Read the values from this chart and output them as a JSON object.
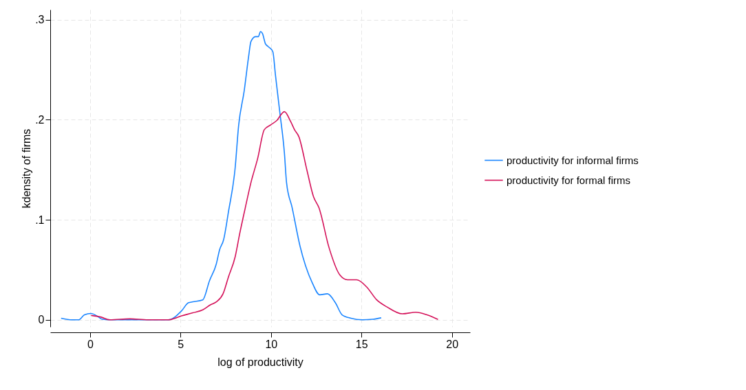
{
  "chart_data": {
    "type": "line",
    "xlabel": "log of productivity",
    "ylabel": "kdensity of firms",
    "xlim": [
      -2.2,
      21
    ],
    "ylim": [
      -0.007,
      0.31
    ],
    "xticks": [
      0,
      5,
      10,
      15,
      20
    ],
    "yticks": [
      0,
      {
        "value": 0.1,
        "label": ".1"
      },
      {
        "value": 0.2,
        "label": ".2"
      },
      {
        "value": 0.3,
        "label": ".3"
      }
    ],
    "grid": true,
    "legend": "right",
    "line_style": "solid",
    "series": [
      {
        "name": "productivity for informal firms",
        "color": "#1a85ff",
        "x": [
          -1.6,
          -0.99,
          -0.62,
          -0.31,
          0.06,
          0.37,
          0.68,
          1.1,
          4.32,
          5.06,
          5.43,
          5.68,
          6.23,
          6.6,
          6.98,
          7.16,
          7.38,
          7.65,
          8.02,
          8.21,
          8.52,
          8.77,
          8.89,
          9.14,
          9.3,
          9.42,
          9.53,
          9.69,
          9.85,
          10.1,
          10.25,
          10.49,
          10.74,
          10.86,
          11.17,
          11.6,
          11.91,
          12.28,
          12.69,
          13.12,
          13.56,
          13.93,
          14.42,
          15.04,
          15.6,
          16.09
        ],
        "values": [
          0.0016,
          0,
          0,
          0.005,
          0.0064,
          0.004,
          0.0005,
          0,
          0,
          0.009,
          0.017,
          0.018,
          0.02,
          0.039,
          0.056,
          0.07,
          0.08,
          0.108,
          0.152,
          0.194,
          0.229,
          0.264,
          0.278,
          0.283,
          0.283,
          0.288,
          0.286,
          0.276,
          0.273,
          0.268,
          0.244,
          0.207,
          0.167,
          0.137,
          0.112,
          0.074,
          0.054,
          0.037,
          0.025,
          0.026,
          0.017,
          0.005,
          0.0016,
          0,
          0.0005,
          0.002
        ]
      },
      {
        "name": "productivity for formal firms",
        "color": "#d41159",
        "x": [
          0.06,
          0.62,
          1.1,
          2.2,
          3.2,
          4.32,
          5.06,
          5.68,
          6.23,
          6.65,
          6.98,
          7.35,
          7.65,
          8.02,
          8.27,
          8.58,
          8.89,
          9.26,
          9.63,
          10.0,
          10.31,
          10.74,
          11.09,
          11.3,
          11.54,
          11.98,
          12.35,
          12.65,
          13.21,
          13.8,
          14.23,
          14.73,
          15.28,
          15.84,
          16.4,
          17.26,
          18.0,
          18.62,
          19.23
        ],
        "values": [
          0.0044,
          0.0027,
          0,
          0.001,
          0,
          0,
          0.004,
          0.007,
          0.01,
          0.015,
          0.018,
          0.026,
          0.043,
          0.063,
          0.086,
          0.112,
          0.137,
          0.161,
          0.19,
          0.195,
          0.199,
          0.208,
          0.198,
          0.19,
          0.183,
          0.15,
          0.123,
          0.112,
          0.072,
          0.045,
          0.04,
          0.04,
          0.033,
          0.02,
          0.013,
          0.006,
          0.0076,
          0.005,
          0.0004
        ]
      }
    ]
  }
}
